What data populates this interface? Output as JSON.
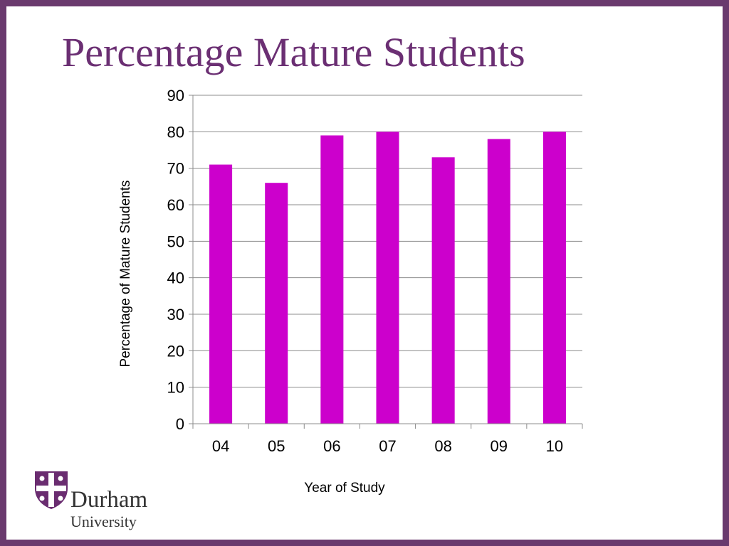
{
  "slide": {
    "title": "Percentage Mature Students",
    "logo": {
      "name": "Durham",
      "subtitle": "University",
      "color": "#6a2c70"
    }
  },
  "colors": {
    "frame": "#6a3a6e",
    "title": "#6b2f73",
    "bar": "#cc00cc",
    "grid": "#8c8c8c"
  },
  "chart_data": {
    "type": "bar",
    "title": "",
    "xlabel": "Year of Study",
    "ylabel": "Percentage of Mature Students",
    "categories": [
      "04",
      "05",
      "06",
      "07",
      "08",
      "09",
      "10"
    ],
    "values": [
      71,
      66,
      79,
      80,
      73,
      78,
      80
    ],
    "ylim": [
      0,
      90
    ],
    "ytick_step": 10,
    "grid": true,
    "legend": "none"
  }
}
